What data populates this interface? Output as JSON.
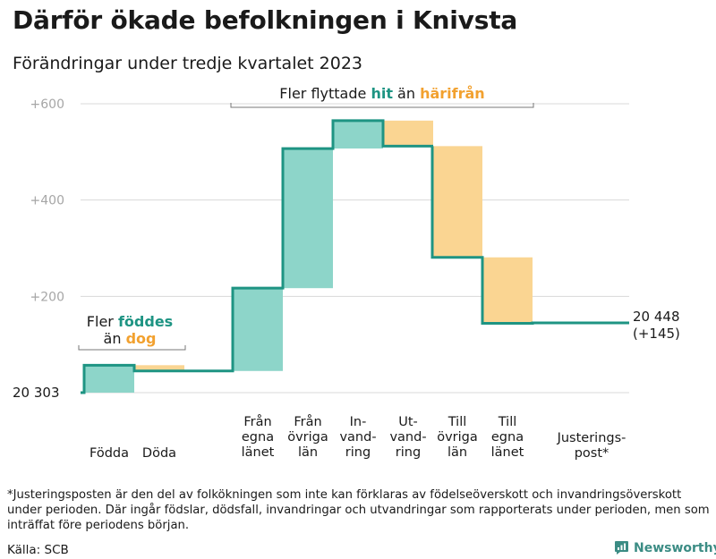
{
  "title": "Därför ökade befolkningen i Knivsta",
  "subtitle": "Förändringar under tredje kvartalet 2023",
  "footnote": "*Justeringsposten är den del av folkökningen som inte kan förklaras av födelseöverskott och invandringsöverskott under perioden. Där ingår födslar, dödsfall, invandringar och utvandringar som rapporterats under perioden, men som inträffat före periodens början.",
  "source": "Källa: SCB",
  "brand": "Newsworthy",
  "colors": {
    "increase": "#8dd5c9",
    "decrease": "#fad592",
    "line": "#1e9483",
    "grid": "#d8d8d8",
    "axis_text": "#a6a6a6",
    "bracket": "#777777",
    "orange_text": "#f2a12f"
  },
  "icons": {
    "brand": "newsworthy-logo-icon"
  },
  "chart_data": {
    "type": "waterfall",
    "start_label": "20  303",
    "start_value": 20303,
    "end_label": "20 448",
    "end_change_label": "(+145)",
    "end_value": 20448,
    "ytick_labels": [
      "+600",
      "+400",
      "+200"
    ],
    "ytick_values": [
      600,
      400,
      200
    ],
    "ylim": [
      0,
      600
    ],
    "steps": [
      {
        "key": "fodda",
        "label": "Födda",
        "lines": [
          "Födda"
        ],
        "value": 57
      },
      {
        "key": "doda",
        "label": "Döda",
        "lines": [
          "Döda"
        ],
        "value": -12
      },
      {
        "key": "fran_egna",
        "label": "Från egna länet",
        "lines": [
          "Från",
          "egna",
          "länet"
        ],
        "value": 172
      },
      {
        "key": "fran_ovriga",
        "label": "Från övriga län",
        "lines": [
          "Från",
          "övriga",
          "län"
        ],
        "value": 290
      },
      {
        "key": "invandring",
        "label": "Invandring",
        "lines": [
          "In-",
          "vand-",
          "ring"
        ],
        "value": 58
      },
      {
        "key": "utvandring",
        "label": "Utvandring",
        "lines": [
          "Ut-",
          "vand-",
          "ring"
        ],
        "value": -53
      },
      {
        "key": "till_ovriga",
        "label": "Till övriga län",
        "lines": [
          "Till",
          "övriga",
          "län"
        ],
        "value": -231
      },
      {
        "key": "till_egna",
        "label": "Till egna länet",
        "lines": [
          "Till",
          "egna",
          "länet"
        ],
        "value": -137
      },
      {
        "key": "justering",
        "label": "Justeringspost*",
        "lines": [
          "Justerings-",
          "post*"
        ],
        "value": 1
      }
    ],
    "annotations": {
      "births": {
        "pre": "Fler ",
        "hl1": "föddes",
        "mid": "än ",
        "hl2": "dog"
      },
      "migration": {
        "pre": "Fler flyttade ",
        "hl1": "hit",
        "mid": " än ",
        "hl2": "härifrån"
      }
    }
  }
}
